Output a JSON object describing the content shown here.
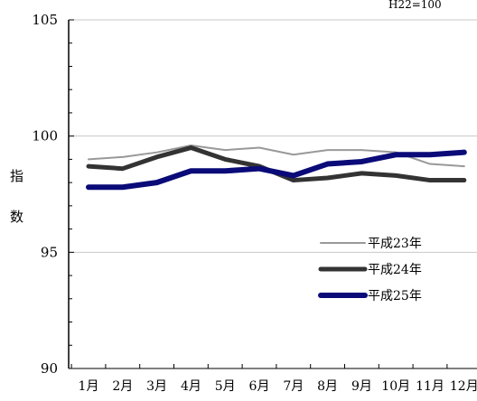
{
  "chart_data": {
    "type": "line",
    "note": "H22=100",
    "ylabel": "指数",
    "ylim": [
      90,
      105
    ],
    "yticks": [
      90,
      95,
      100,
      105
    ],
    "grid": true,
    "legend_position": "bottom-right",
    "categories": [
      "1月",
      "2月",
      "3月",
      "4月",
      "5月",
      "6月",
      "7月",
      "8月",
      "9月",
      "10月",
      "11月",
      "12月"
    ],
    "series": [
      {
        "name": "平成23年",
        "color": "#999999",
        "values": [
          99.0,
          99.1,
          99.3,
          99.6,
          99.4,
          99.5,
          99.2,
          99.4,
          99.4,
          99.3,
          98.8,
          98.7
        ]
      },
      {
        "name": "平成24年",
        "color": "#333333",
        "values": [
          98.7,
          98.6,
          99.1,
          99.5,
          99.0,
          98.7,
          98.1,
          98.2,
          98.4,
          98.3,
          98.1,
          98.1
        ]
      },
      {
        "name": "平成25年",
        "color": "#0a0a78",
        "values": [
          97.8,
          97.8,
          98.0,
          98.5,
          98.5,
          98.6,
          98.3,
          98.8,
          98.9,
          99.2,
          99.2,
          99.3
        ]
      }
    ]
  }
}
